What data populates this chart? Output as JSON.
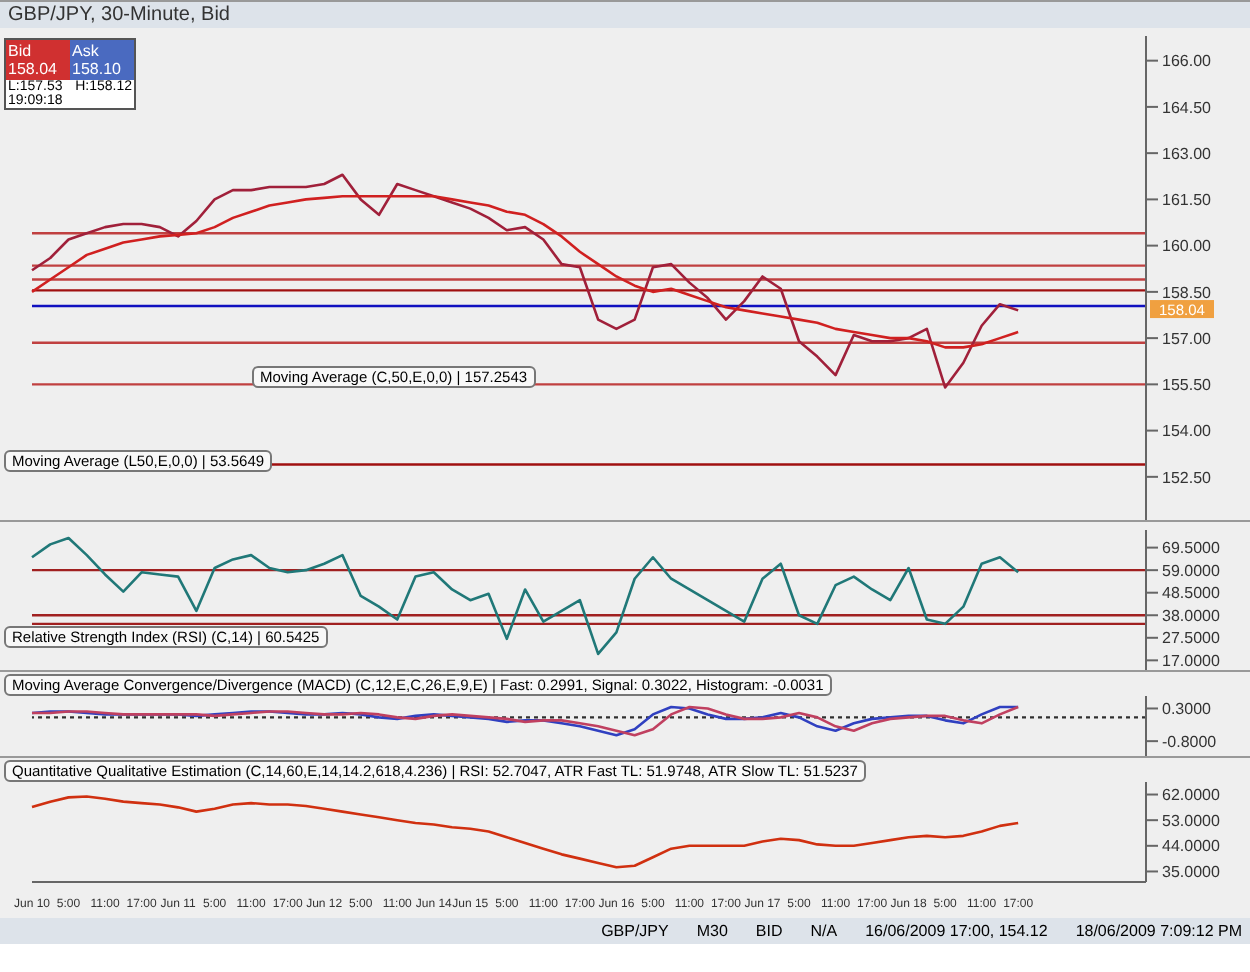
{
  "chart_data": [
    {
      "type": "line",
      "title": "GBP/JPY, 30-Minute, Bid",
      "tick_labels": "y",
      "series": [
        {
          "color": "#a0203a",
          "values": [
            159.2,
            159.6,
            160.2,
            160.4,
            160.6,
            160.7,
            160.7,
            160.6,
            160.3,
            160.8,
            161.5,
            161.8,
            161.8,
            161.9,
            161.9,
            161.9,
            162.0,
            162.3,
            161.5,
            161.0,
            162.0,
            161.8,
            161.6,
            161.4,
            161.2,
            160.9,
            160.5,
            160.6,
            160.2,
            159.4,
            159.3,
            157.6,
            157.3,
            157.6,
            159.3,
            159.4,
            158.8,
            158.3,
            157.6,
            158.2,
            159.0,
            158.6,
            156.9,
            156.4,
            155.8,
            157.1,
            156.9,
            156.9,
            157.0,
            157.3,
            155.4,
            156.2,
            157.4,
            158.1,
            157.9,
            null,
            null,
            null,
            null,
            null,
            null,
            null
          ]
        },
        {
          "color": "#d02020",
          "values": [
            158.5,
            158.9,
            159.3,
            159.7,
            159.9,
            160.1,
            160.2,
            160.3,
            160.35,
            160.4,
            160.6,
            160.9,
            161.1,
            161.3,
            161.4,
            161.5,
            161.55,
            161.6,
            161.6,
            161.6,
            161.6,
            161.6,
            161.6,
            161.5,
            161.4,
            161.3,
            161.1,
            161.0,
            160.7,
            160.3,
            159.8,
            159.4,
            159.0,
            158.7,
            158.5,
            158.6,
            158.4,
            158.2,
            158.0,
            157.9,
            157.8,
            157.7,
            157.6,
            157.5,
            157.3,
            157.2,
            157.1,
            157.0,
            157.0,
            156.9,
            156.7,
            156.7,
            156.8,
            157.0,
            157.2,
            null,
            null,
            null,
            null,
            null,
            null,
            null
          ]
        }
      ],
      "ylim": [
        151.1,
        166.8
      ],
      "yticks": [
        {
          "value": 152.5,
          "label": "152.50"
        },
        {
          "value": 154,
          "label": "154.00"
        },
        {
          "value": 155.5,
          "label": "155.50"
        },
        {
          "value": 157,
          "label": "157.00"
        },
        {
          "value": 158.5,
          "label": "158.50"
        },
        {
          "value": 160,
          "label": "160.00"
        },
        {
          "value": 161.5,
          "label": "161.50"
        },
        {
          "value": 163,
          "label": "163.00"
        },
        {
          "value": 164.5,
          "label": "164.50"
        },
        {
          "value": 166,
          "label": "166.00"
        }
      ],
      "ref_lines": [
        {
          "axis": "y",
          "value": 160.4,
          "color": "#c04040"
        },
        {
          "axis": "y",
          "value": 159.35,
          "color": "#c04040"
        },
        {
          "axis": "y",
          "value": 158.9,
          "color": "#c04040"
        },
        {
          "axis": "y",
          "value": 158.55,
          "color": "#a01010"
        },
        {
          "axis": "y",
          "value": 158.04,
          "color": "#1010c0",
          "label": "158.04"
        },
        {
          "axis": "y",
          "value": 156.85,
          "color": "#c04040"
        },
        {
          "axis": "y",
          "value": 155.5,
          "color": "#c04040"
        },
        {
          "axis": "y",
          "value": 152.9,
          "color": "#a01010"
        }
      ],
      "annotations": [
        "Moving Average (C,50,E,0,0) | 157.2543",
        "Bid",
        "158.04",
        "Ask",
        "158.10",
        "L:157.53",
        "H:158.12",
        "19:09:18",
        "Moving Average (L50,E,0,0) | 53.5649"
      ]
    },
    {
      "type": "line",
      "tick_labels": "y",
      "series": [
        {
          "color": "#207878",
          "values": [
            65,
            71,
            74,
            66,
            57,
            49,
            58,
            57,
            56,
            40,
            60,
            64,
            66,
            60,
            58,
            59,
            62,
            66,
            47,
            42,
            36,
            56,
            58,
            50,
            45,
            48,
            27,
            50,
            35,
            40,
            45,
            20,
            30,
            55,
            65,
            55,
            50,
            45,
            40,
            35,
            55,
            62,
            38,
            34,
            52,
            56,
            50,
            45,
            60,
            36,
            34,
            42,
            62,
            65,
            58,
            null,
            null,
            null,
            null,
            null,
            null,
            null
          ]
        }
      ],
      "ylim": [
        12.5,
        77.7
      ],
      "yticks": [
        {
          "value": 17,
          "label": "17.0000"
        },
        {
          "value": 27.5,
          "label": "27.5000"
        },
        {
          "value": 38,
          "label": "38.0000"
        },
        {
          "value": 48.5,
          "label": "48.5000"
        },
        {
          "value": 59,
          "label": "59.0000"
        },
        {
          "value": 69.5,
          "label": "69.5000"
        }
      ],
      "ref_lines": [
        {
          "axis": "y",
          "value": 59,
          "color": "#a02020"
        },
        {
          "axis": "y",
          "value": 38,
          "color": "#a02020"
        },
        {
          "axis": "y",
          "value": 34,
          "color": "#a02020"
        }
      ],
      "annotations": [
        "Relative Strength Index (RSI) (C,14) | 60.5425"
      ]
    },
    {
      "type": "line",
      "tick_labels": "y",
      "series": [
        {
          "color": "#3040c0",
          "values": [
            0.15,
            0.2,
            0.2,
            0.15,
            0.1,
            0.1,
            0.1,
            0.1,
            0.1,
            0.05,
            0.1,
            0.15,
            0.2,
            0.2,
            0.15,
            0.1,
            0.1,
            0.15,
            0.1,
            0,
            -0.05,
            0.05,
            0.1,
            0.05,
            0,
            -0.05,
            -0.15,
            -0.1,
            -0.1,
            -0.2,
            -0.3,
            -0.45,
            -0.6,
            -0.4,
            0.1,
            0.35,
            0.3,
            0.1,
            -0.05,
            -0.05,
            0,
            0.15,
            0,
            -0.3,
            -0.45,
            -0.2,
            -0.05,
            0,
            0.05,
            0.05,
            -0.1,
            -0.2,
            0.1,
            0.35,
            0.35,
            null,
            null,
            null,
            null,
            null,
            null,
            null
          ]
        },
        {
          "color": "#c04060",
          "values": [
            0.15,
            0.15,
            0.2,
            0.2,
            0.15,
            0.1,
            0.1,
            0.1,
            0.1,
            0.1,
            0.05,
            0.1,
            0.15,
            0.2,
            0.2,
            0.15,
            0.1,
            0.1,
            0.15,
            0.1,
            0,
            -0.05,
            0.05,
            0.1,
            0.05,
            0,
            -0.05,
            -0.15,
            -0.1,
            -0.1,
            -0.2,
            -0.3,
            -0.45,
            -0.6,
            -0.4,
            0.1,
            0.35,
            0.3,
            0.1,
            -0.05,
            -0.05,
            0,
            0.15,
            0,
            -0.3,
            -0.45,
            -0.2,
            -0.05,
            0,
            0.05,
            0.05,
            -0.1,
            -0.2,
            0.1,
            0.35,
            null,
            null,
            null,
            null,
            null,
            null,
            null
          ]
        }
      ],
      "ylim": [
        -1.3,
        0.72
      ],
      "yticks": [
        {
          "value": -0.8,
          "label": "-0.8000"
        },
        {
          "value": 0.3,
          "label": "0.3000"
        }
      ],
      "ref_lines": [
        {
          "axis": "y",
          "value": 0,
          "color": "#303030",
          "line_style": "dotted"
        }
      ],
      "annotations": [
        "Moving Average Convergence/Divergence (MACD) (C,12,E,C,26,E,9,E) | Fast: 0.2991, Signal: 0.3022, Histogram: -0.0031"
      ]
    },
    {
      "type": "line",
      "categories": [
        "Jun 10",
        null,
        "5:00",
        null,
        "11:00",
        null,
        "17:00",
        null,
        "Jun 11",
        null,
        "5:00",
        null,
        "11:00",
        null,
        "17:00",
        null,
        "Jun 12",
        null,
        "5:00",
        null,
        "11:00",
        null,
        "Jun 14",
        null,
        "Jun 15",
        null,
        "5:00",
        null,
        "11:00",
        null,
        "17:00",
        null,
        "Jun 16",
        null,
        "5:00",
        null,
        "11:00",
        null,
        "17:00",
        null,
        "Jun 17",
        null,
        "5:00",
        null,
        "11:00",
        null,
        "17:00",
        null,
        "Jun 18",
        null,
        "5:00",
        null,
        "11:00",
        null,
        "17:00",
        null,
        null,
        null,
        null,
        null,
        null,
        null
      ],
      "series": [
        {
          "color": "#d03010",
          "values": [
            57.6,
            59.5,
            61,
            61.3,
            60.5,
            59.5,
            59,
            58.5,
            57.5,
            56,
            57,
            58.5,
            59,
            58.5,
            58.5,
            58,
            57,
            56,
            55,
            54,
            53,
            52,
            51.5,
            50.5,
            50,
            49,
            47,
            45,
            43,
            41,
            39.5,
            38,
            36.5,
            37,
            40,
            43,
            44,
            44,
            44,
            44,
            45.5,
            46.5,
            46,
            44.5,
            44,
            44,
            45,
            46,
            47,
            47.5,
            47,
            47.5,
            49,
            51,
            52,
            null,
            null,
            null,
            null,
            null,
            null,
            null
          ]
        }
      ],
      "ylim": [
        31.3,
        66.4
      ],
      "yticks": [
        {
          "value": 35,
          "label": "35.0000"
        },
        {
          "value": 44,
          "label": "44.0000"
        },
        {
          "value": 53,
          "label": "53.0000"
        },
        {
          "value": 62,
          "label": "62.0000"
        }
      ],
      "annotations": [
        "Quantitative Qualitative Estimation (C,14,60,E,14,14.2,618,4.236) | RSI: 52.7047, ATR Fast TL: 51.9748, ATR Slow TL: 51.5237",
        "GBP/JPY",
        "M30",
        "BID",
        "N/A",
        "16/06/2009 17:00, 154.12",
        "18/06/2009 7:09:12 PM"
      ]
    }
  ]
}
